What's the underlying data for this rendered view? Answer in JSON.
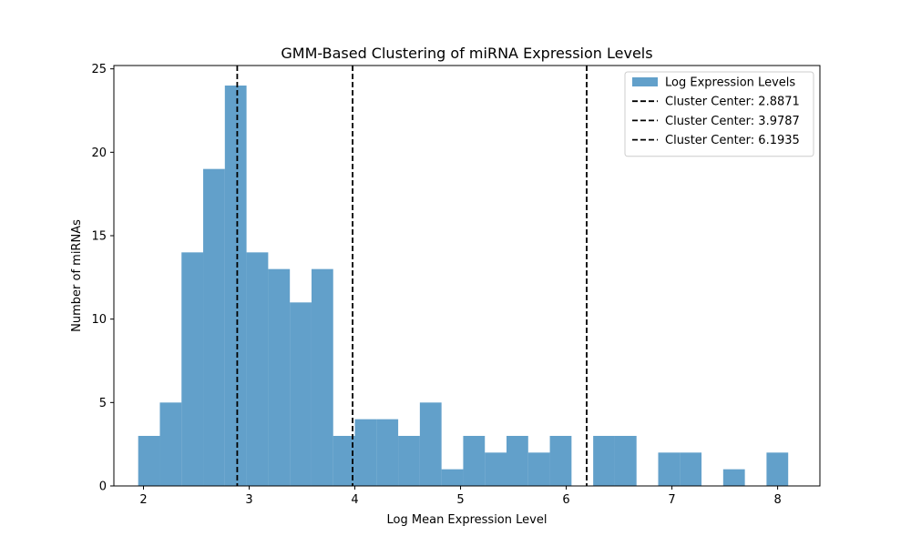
{
  "chart_data": {
    "type": "bar",
    "title": "GMM-Based Clustering of miRNA Expression Levels",
    "xlabel": "Log Mean Expression Level",
    "ylabel": "Number of miRNAs",
    "xlim": [
      1.72,
      8.4
    ],
    "ylim": [
      0,
      25.2
    ],
    "x_ticks": [
      2,
      3,
      4,
      5,
      6,
      7,
      8
    ],
    "y_ticks": [
      0,
      5,
      10,
      15,
      20,
      25
    ],
    "bar_color": "#1f77b4",
    "bar_alpha": 0.7,
    "series": [
      {
        "name": "Log Expression Levels",
        "bin_edges": [
          1.95,
          2.155,
          2.36,
          2.565,
          2.77,
          2.975,
          3.18,
          3.385,
          3.59,
          3.795,
          4.0,
          4.205,
          4.41,
          4.615,
          4.82,
          5.025,
          5.23,
          5.435,
          5.64,
          5.845,
          6.05,
          6.255,
          6.46,
          6.665,
          6.87,
          7.075,
          7.28,
          7.485,
          7.69,
          7.895,
          8.1
        ],
        "counts": [
          3,
          5,
          14,
          19,
          24,
          14,
          13,
          11,
          13,
          3,
          4,
          4,
          3,
          5,
          1,
          3,
          2,
          3,
          2,
          3,
          0,
          3,
          3,
          0,
          2,
          2,
          0,
          1,
          0,
          2
        ]
      }
    ],
    "vlines": [
      {
        "label": "Cluster Center: 2.8871",
        "x": 2.8871,
        "color": "#000000",
        "style": "dashed"
      },
      {
        "label": "Cluster Center: 3.9787",
        "x": 3.9787,
        "color": "#000000",
        "style": "dashed"
      },
      {
        "label": "Cluster Center: 6.1935",
        "x": 6.1935,
        "color": "#000000",
        "style": "dashed"
      }
    ],
    "legend_position": "top-right",
    "grid": false
  }
}
